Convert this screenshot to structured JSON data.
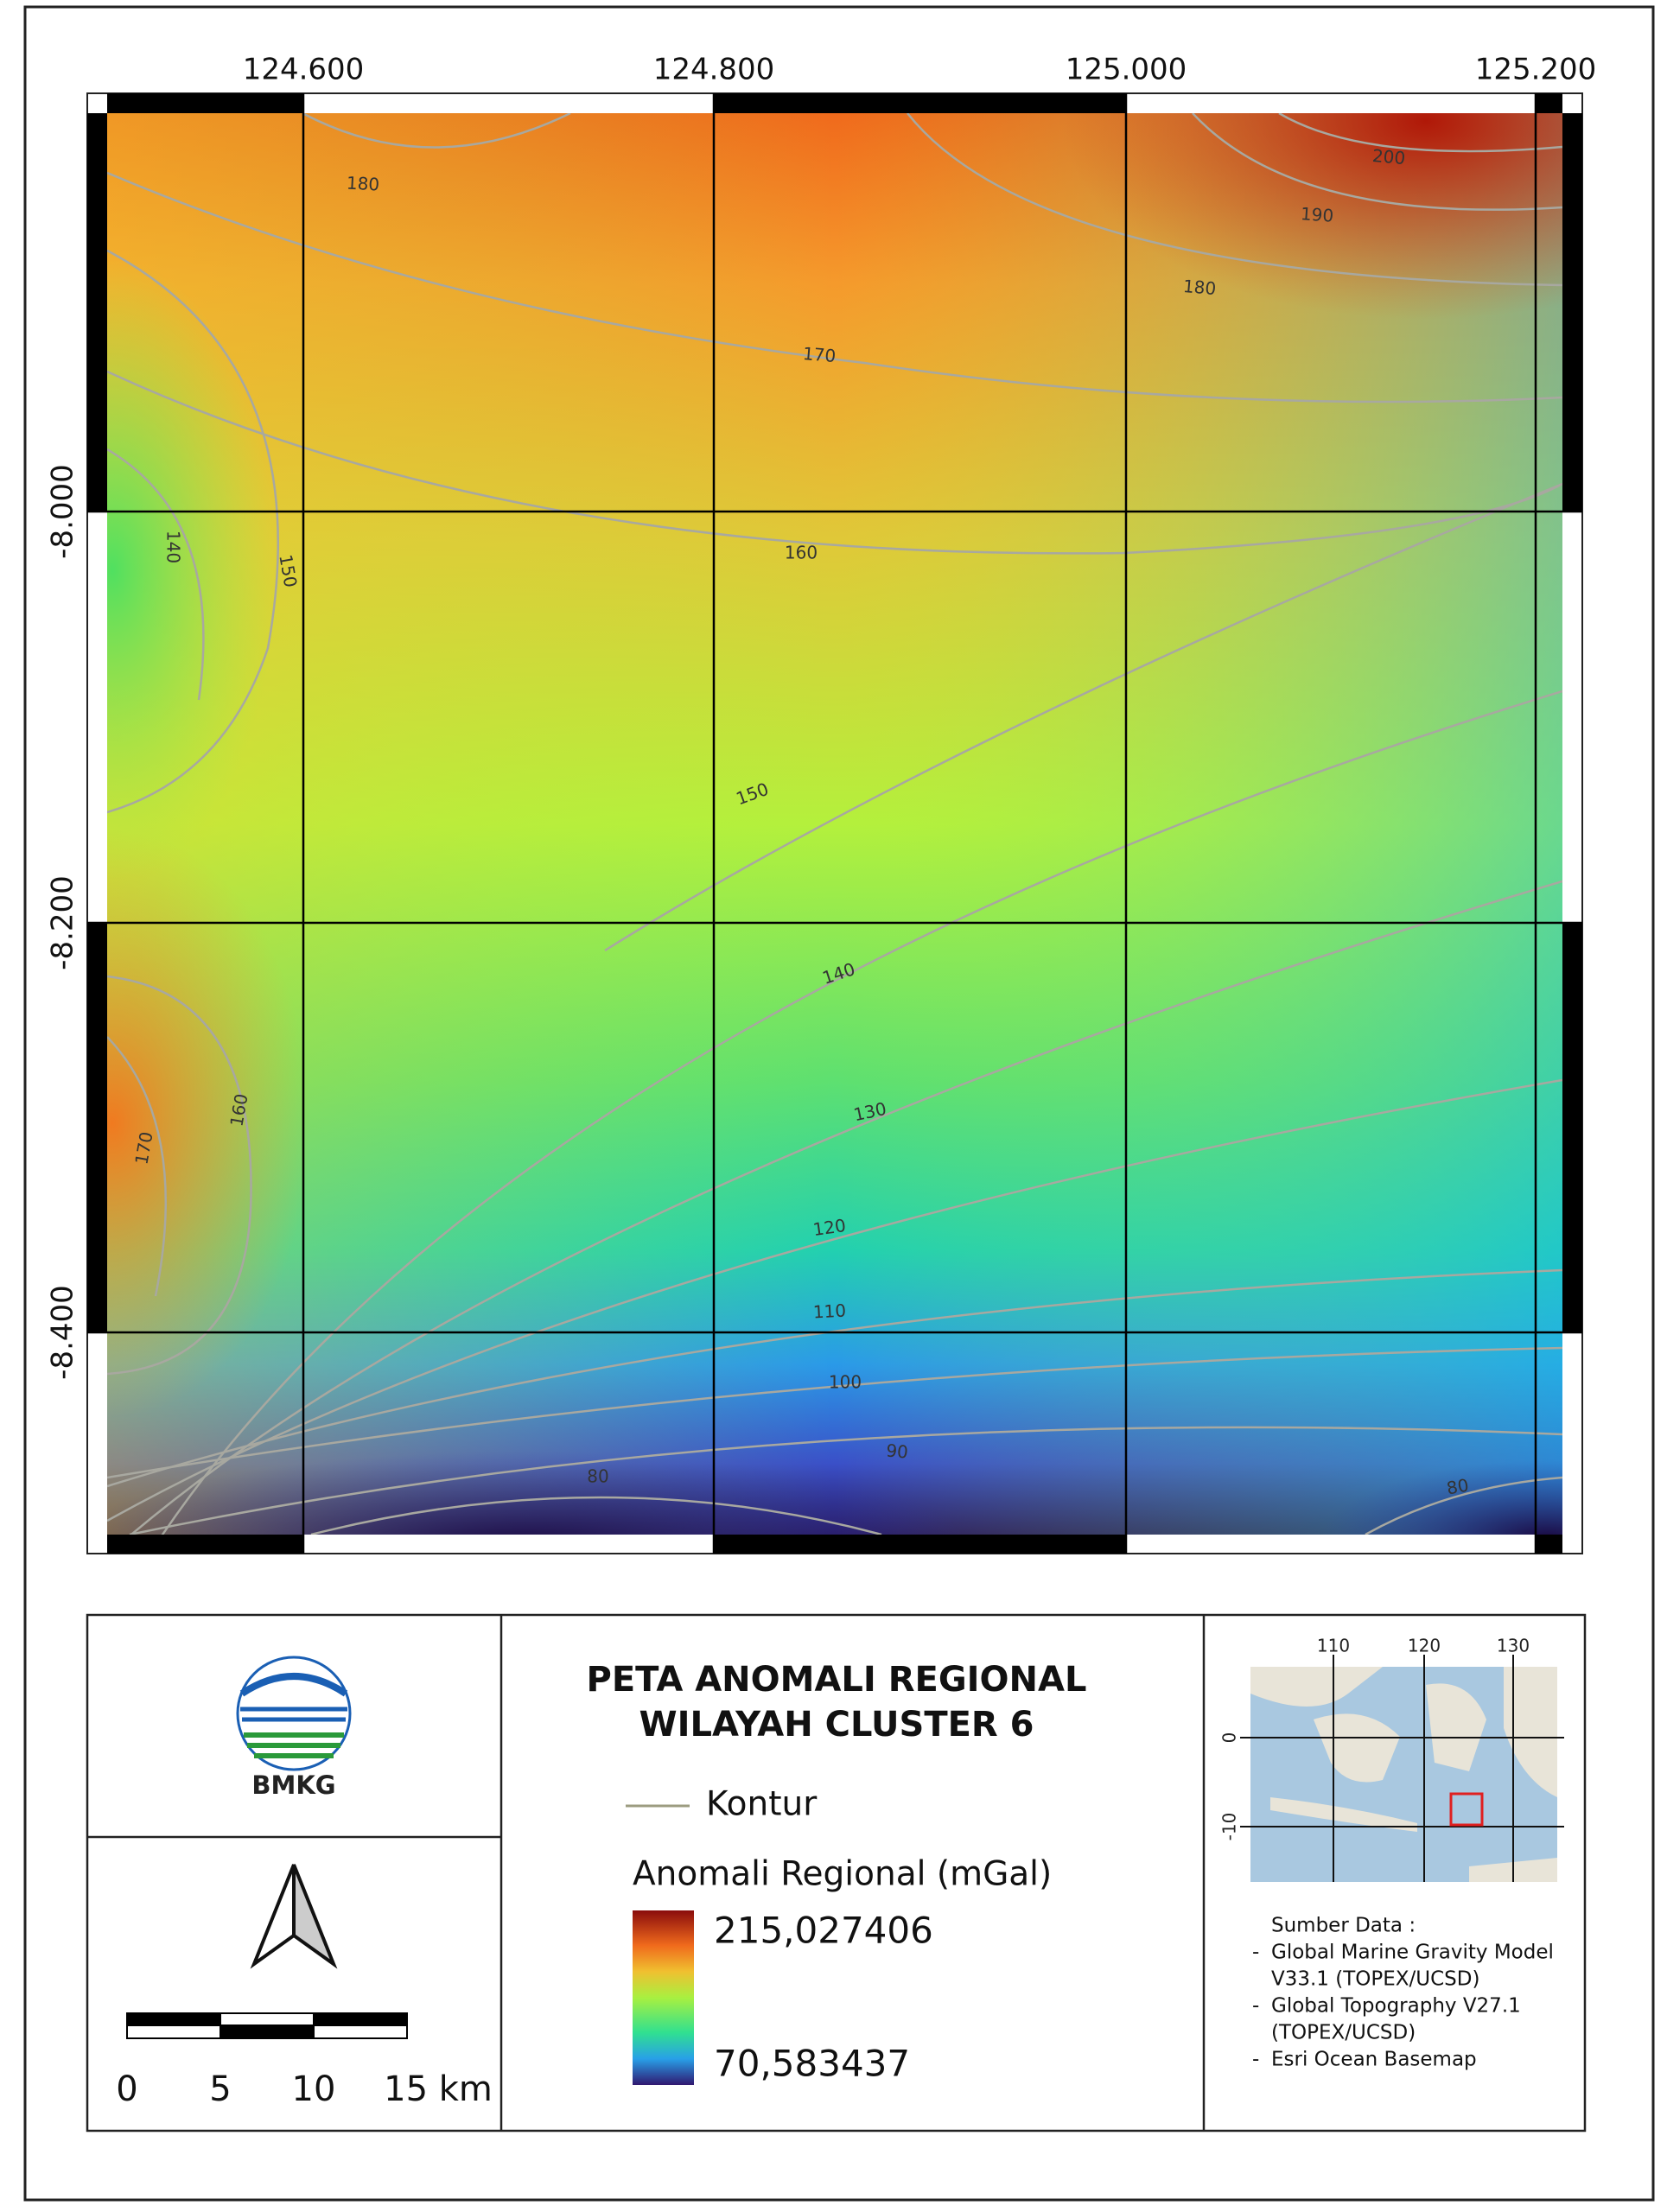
{
  "map": {
    "x_labels": [
      "124.600",
      "124.800",
      "125.000",
      "125.200"
    ],
    "y_labels": [
      "-8.000",
      "-8.200",
      "-8.400"
    ],
    "contour_labels": [
      "180",
      "200",
      "190",
      "180",
      "170",
      "160",
      "140",
      "150",
      "150",
      "140",
      "130",
      "120",
      "110",
      "100",
      "90",
      "80",
      "80",
      "160",
      "170"
    ]
  },
  "title": [
    "PETA ANOMALI REGIONAL",
    "WILAYAH CLUSTER 6"
  ],
  "logo": "BMKG",
  "legend": {
    "line_label": "Kontur",
    "ramp_title": "Anomali Regional (mGal)",
    "max": "215,027406",
    "min": "70,583437"
  },
  "scale_bar": [
    "0",
    "5",
    "10",
    "15 km"
  ],
  "inset": {
    "x_labels": [
      "110",
      "120",
      "130"
    ],
    "y_labels": [
      "0",
      "-10"
    ]
  },
  "source": [
    "Sumber Data :",
    "-",
    "Global Marine Gravity Model",
    "V33.1 (TOPEX/UCSD)",
    "-",
    "Global Topography V27.1",
    "(TOPEX/UCSD)",
    "-",
    "Esri Ocean Basemap"
  ]
}
